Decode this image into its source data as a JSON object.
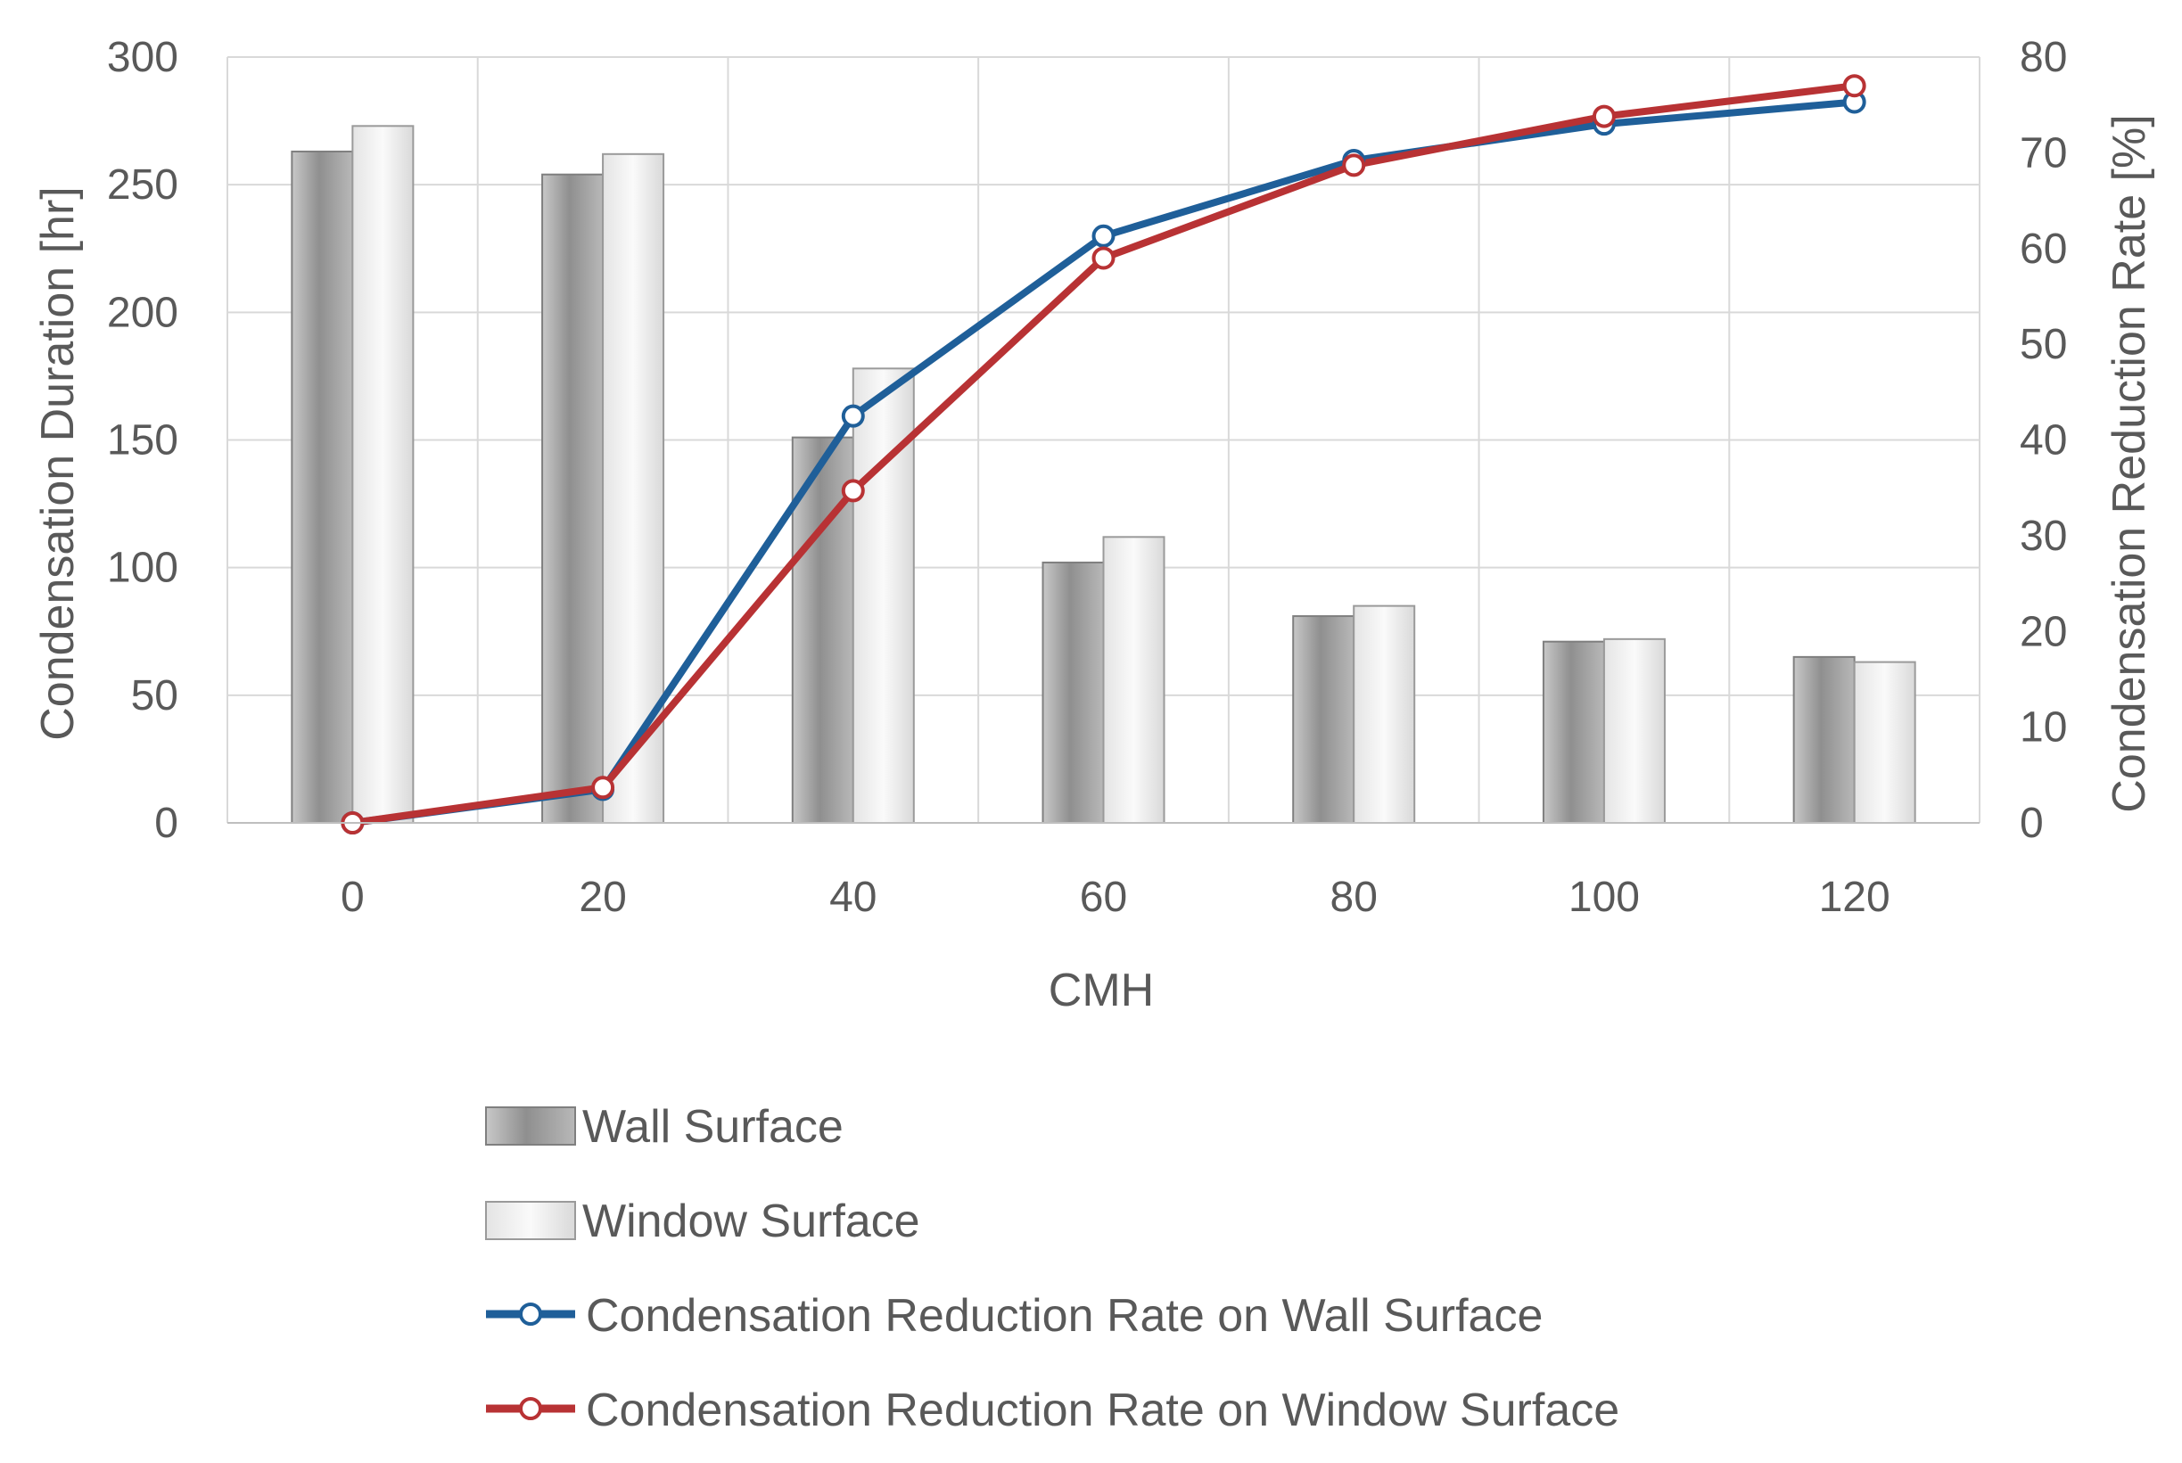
{
  "chart_data": {
    "type": "bar",
    "title": "",
    "xlabel": "CMH",
    "ylabel": "Condensation Duration [hr]",
    "y2label": "Condensation Reduction Rate [%]",
    "categories": [
      "0",
      "20",
      "40",
      "60",
      "80",
      "100",
      "120"
    ],
    "ylim": [
      0,
      300
    ],
    "y2lim": [
      0,
      80
    ],
    "yticks": [
      "0",
      "50",
      "100",
      "150",
      "200",
      "250",
      "300"
    ],
    "y2ticks": [
      "0",
      "10",
      "20",
      "30",
      "40",
      "50",
      "60",
      "70",
      "80"
    ],
    "grid": true,
    "legend_position": "bottom",
    "series": [
      {
        "name": "Wall Surface",
        "type": "bar",
        "axis": "left",
        "color": "#9a9a9a",
        "values": [
          263,
          254,
          151,
          102,
          81,
          71,
          65
        ]
      },
      {
        "name": "Window Surface",
        "type": "bar",
        "axis": "left",
        "color": "#e8e8e8",
        "values": [
          273,
          262,
          178,
          112,
          85,
          72,
          63
        ]
      },
      {
        "name": "Condensation Reduction Rate on Wall Surface",
        "type": "line",
        "axis": "right",
        "color": "#1f5f99",
        "values": [
          0,
          3.5,
          42.5,
          61.3,
          69.2,
          73.0,
          75.3
        ]
      },
      {
        "name": "Condensation Reduction Rate on Window Surface",
        "type": "line",
        "axis": "right",
        "color": "#b83234",
        "values": [
          0,
          3.7,
          34.7,
          59.0,
          68.7,
          73.8,
          77.0
        ]
      }
    ]
  }
}
